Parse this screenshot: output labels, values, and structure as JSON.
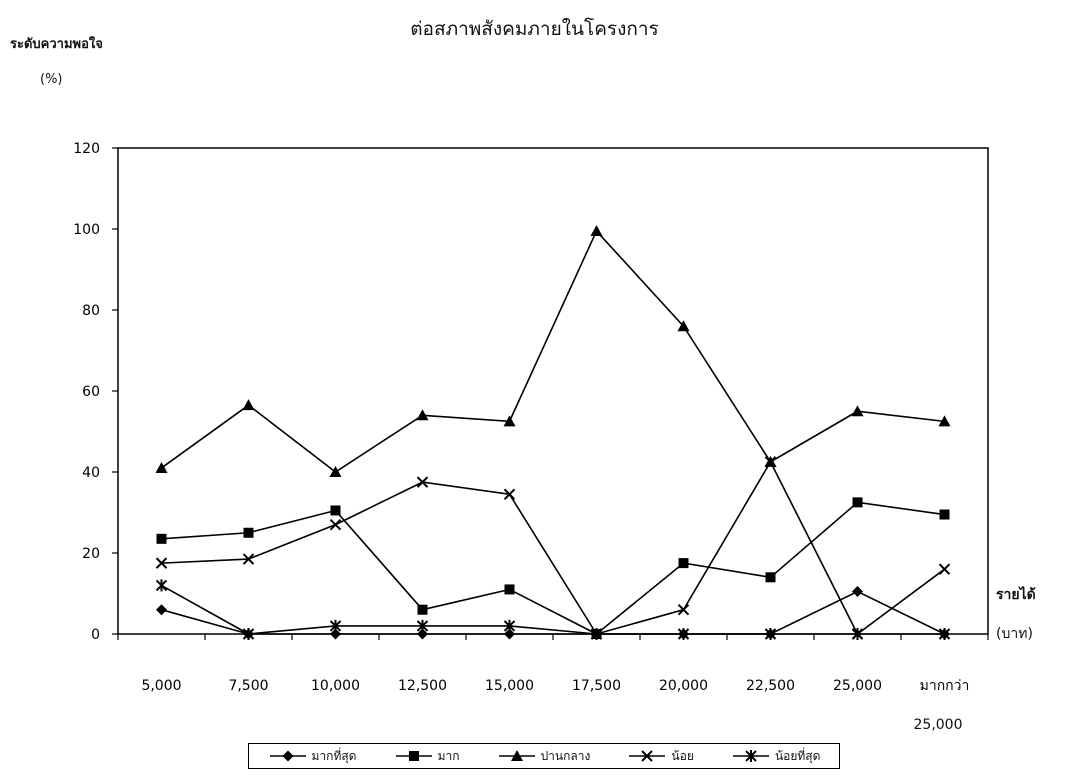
{
  "chart_data": {
    "type": "line",
    "title": "ต่อสภาพสังคมภายในโครงการ",
    "ylabel": "ระดับความพอใจ",
    "yunit": "(%)",
    "xlabel": "รายได้",
    "xunit": "(บาท)",
    "ylim": [
      0,
      120
    ],
    "yticks": [
      0,
      20,
      40,
      60,
      80,
      100,
      120
    ],
    "categories": [
      "5,000",
      "7,500",
      "10,000",
      "12,500",
      "15,000",
      "17,500",
      "20,000",
      "22,500",
      "25,000",
      "มากกว่า"
    ],
    "category_sublabel": "25,000",
    "grid": false,
    "legend_position": "bottom",
    "series": [
      {
        "name": "มากที่สุด",
        "marker": "diamond",
        "values": [
          6,
          0,
          0,
          0,
          0,
          0,
          0,
          0,
          10.5,
          0
        ]
      },
      {
        "name": "มาก",
        "marker": "square",
        "values": [
          23.5,
          25,
          30.5,
          6,
          11,
          0,
          17.5,
          14,
          32.5,
          29.5
        ]
      },
      {
        "name": "ปานกลาง",
        "marker": "triangle",
        "values": [
          41,
          56.5,
          40,
          54,
          52.5,
          99.5,
          76,
          42.5,
          55,
          52.5
        ]
      },
      {
        "name": "น้อย",
        "marker": "x",
        "values": [
          17.5,
          18.5,
          27,
          37.5,
          34.5,
          0,
          6,
          42.5,
          0,
          16
        ]
      },
      {
        "name": "น้อยที่สุด",
        "marker": "star",
        "values": [
          12,
          0,
          2,
          2,
          2,
          0,
          0,
          0,
          0,
          0
        ]
      }
    ]
  }
}
